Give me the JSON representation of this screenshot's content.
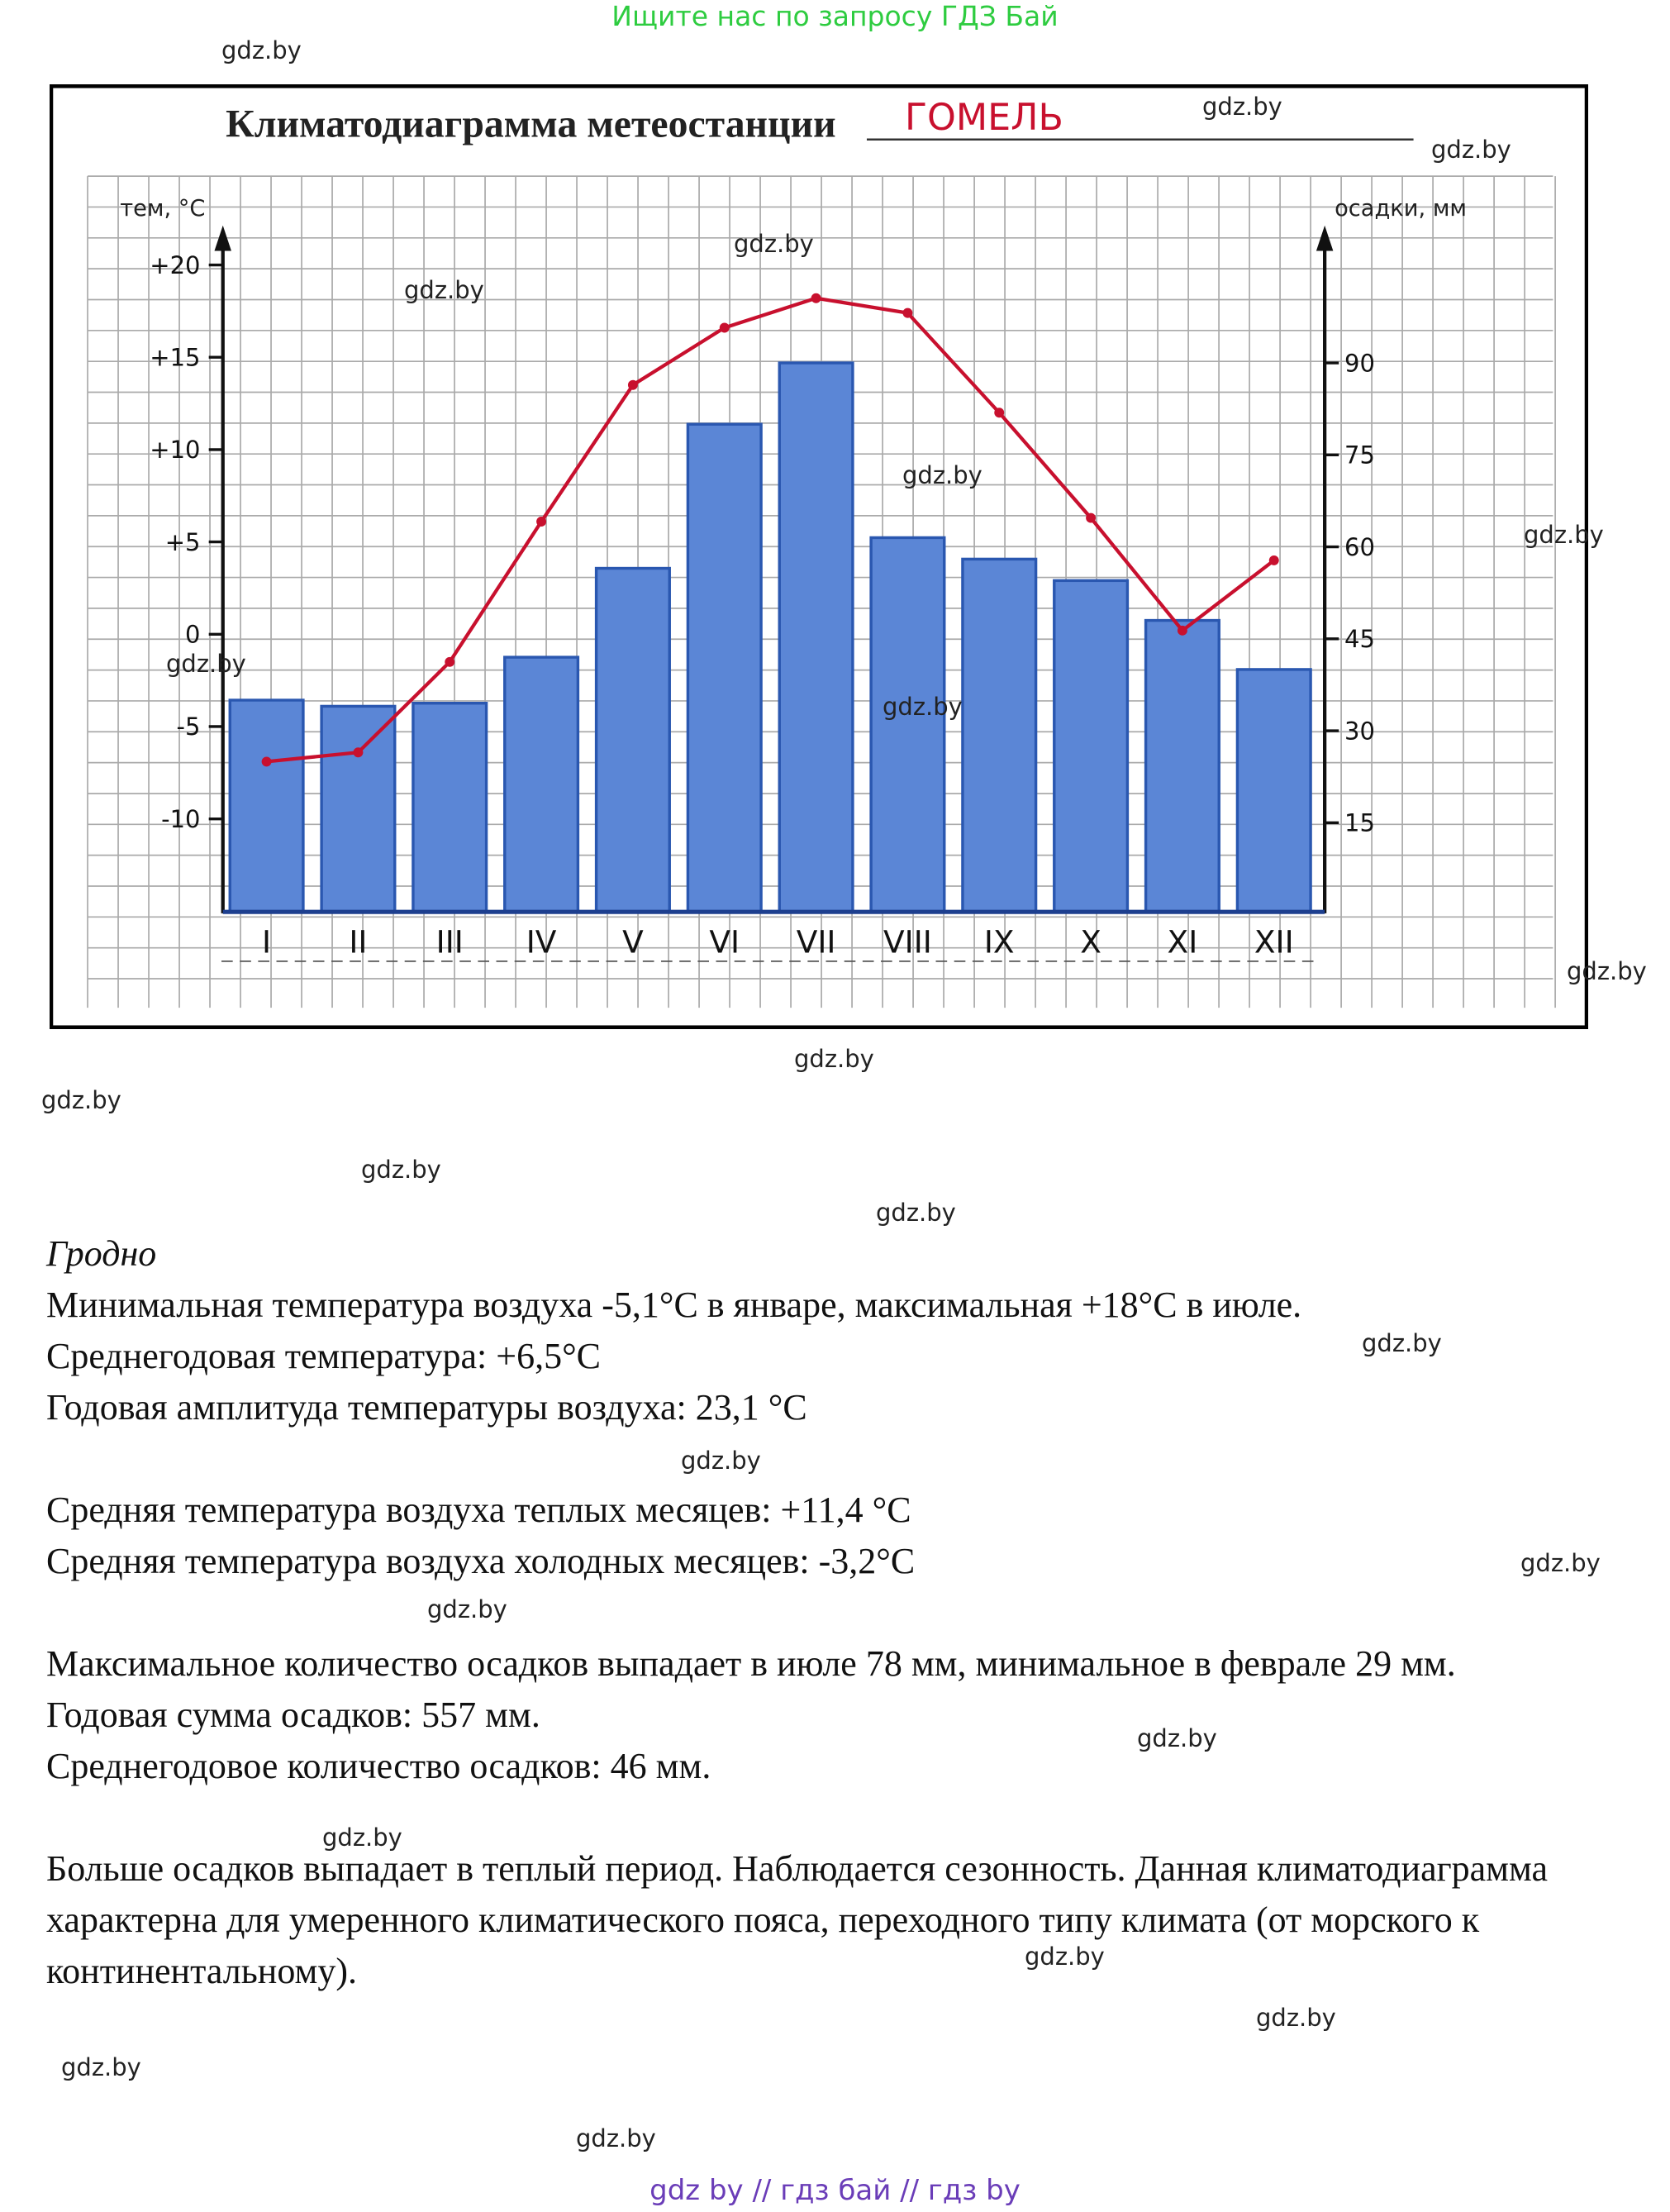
{
  "banner": "Ищите нас по запросу ГДЗ Бай",
  "watermark": "gdz.by",
  "chart_data": {
    "type": "bar+line",
    "title": "Климатодиаграмма метеостанции",
    "station": "ГОМЕЛЬ",
    "categories": [
      "I",
      "II",
      "III",
      "IV",
      "V",
      "VI",
      "VII",
      "VIII",
      "IX",
      "X",
      "XI",
      "XII"
    ],
    "y_left_label": "тем, °C",
    "y_left_ticks": [
      "+20",
      "+15",
      "+10",
      "+5",
      "0",
      "-5",
      "-10"
    ],
    "y_left_tick_values": [
      20,
      15,
      10,
      5,
      0,
      -5,
      -10
    ],
    "y_right_label": "осадки, мм",
    "y_right_ticks": [
      "90",
      "75",
      "60",
      "45",
      "30",
      "15"
    ],
    "y_right_tick_values": [
      90,
      75,
      60,
      45,
      30,
      15
    ],
    "series": [
      {
        "kind": "bar",
        "axis": "right",
        "color": "#5b86d6",
        "values": [
          35,
          34,
          34.5,
          42,
          56.5,
          80,
          90,
          61.5,
          58,
          54.5,
          48,
          40
        ]
      },
      {
        "kind": "line",
        "axis": "left",
        "color": "#c8102e",
        "values": [
          -6.9,
          -6.4,
          -1.5,
          6.1,
          13.5,
          16.6,
          18.2,
          17.4,
          12.0,
          6.3,
          0.2,
          4.0
        ]
      }
    ],
    "grid": true
  },
  "text": {
    "city": "Гродно",
    "lines": [
      "Минимальная температура воздуха -5,1°С в январе, максимальная +18°С в июле.",
      "Среднегодовая температура: +6,5°С",
      "Годовая амплитуда температуры воздуха: 23,1 °С",
      "Средняя температура воздуха теплых месяцев: +11,4 °С",
      "Средняя температура воздуха холодных месяцев: -3,2°С",
      "Максимальное количество осадков выпадает в июле 78 мм, минимальное в феврале 29 мм.",
      "Годовая сумма осадков: 557 мм.",
      "Среднегодовое количество осадков: 46 мм.",
      "Больше осадков выпадает в теплый период. Наблюдается сезонность. Данная климатодиаграмма характерна для умеренного климатического пояса, переходного типу климата (от морского к континентальному)."
    ]
  },
  "footer": "gdz by  //  гдз бай  //  гдз by"
}
